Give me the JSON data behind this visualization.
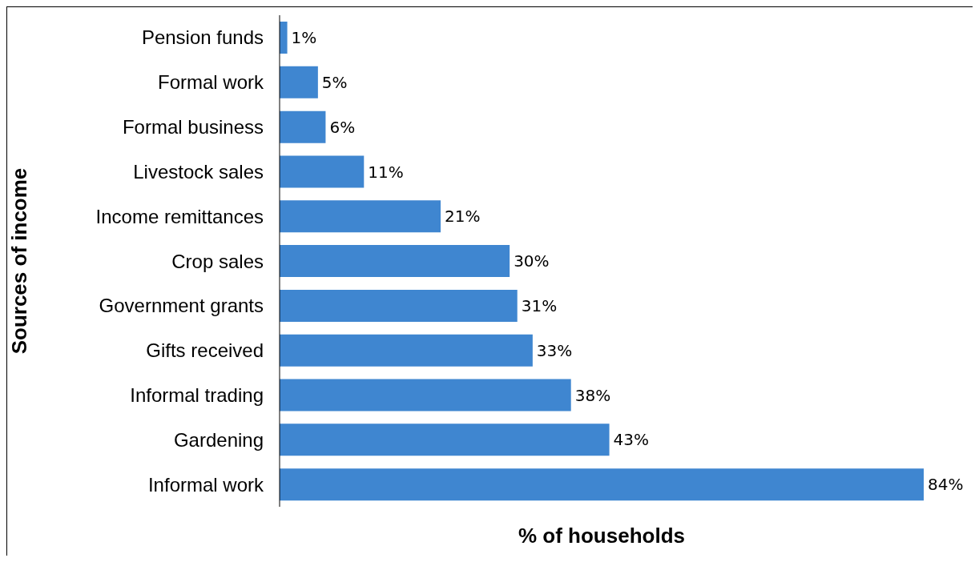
{
  "chart_data": {
    "type": "bar",
    "orientation": "horizontal",
    "xlabel": "% of households",
    "ylabel": "Sources of income",
    "categories": [
      "Pension funds",
      "Formal work",
      "Formal business",
      "Livestock sales",
      "Income remittances",
      "Crop sales",
      "Government grants",
      "Gifts received",
      "Informal  trading",
      "Gardening",
      "Informal work"
    ],
    "values": [
      1,
      5,
      6,
      11,
      21,
      30,
      31,
      33,
      38,
      43,
      84
    ],
    "value_labels": [
      "1%",
      "5%",
      "6%",
      "11%",
      "21%",
      "30%",
      "31%",
      "33%",
      "38%",
      "43%",
      "84%"
    ],
    "color": "#3f86d0",
    "grid": false,
    "legend": false
  }
}
